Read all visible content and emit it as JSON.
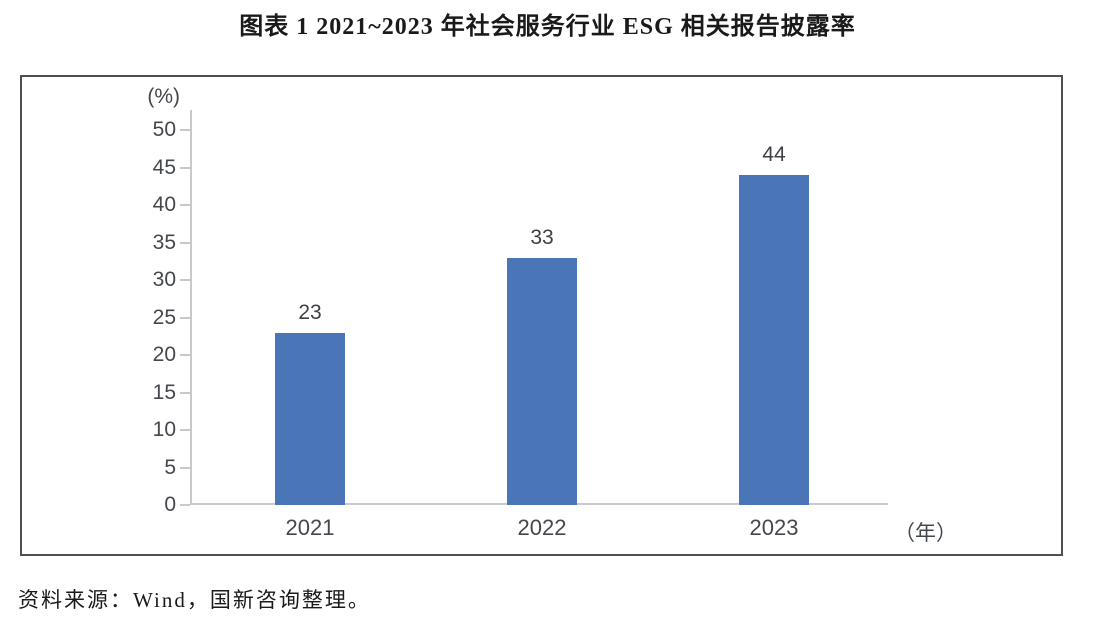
{
  "title": "图表 1 2021~2023 年社会服务行业 ESG 相关报告披露率",
  "source_note": "资料来源：Wind，国新咨询整理。",
  "chart_data": {
    "type": "bar",
    "title": "图表 1 2021~2023 年社会服务行业 ESG 相关报告披露率",
    "categories": [
      "2021",
      "2022",
      "2023"
    ],
    "values": [
      23,
      33,
      44
    ],
    "data_labels": [
      "23",
      "33",
      "44"
    ],
    "xlabel": "（年）",
    "ylabel": "(%)",
    "ylim": [
      0,
      50
    ],
    "yticks": [
      0,
      5,
      10,
      15,
      20,
      25,
      30,
      35,
      40,
      45,
      50
    ],
    "grid": false,
    "legend": "none",
    "bar_color": "#4a76b8"
  },
  "colors": {
    "bar": "#4a76b8",
    "axis_line": "#c9c9c9",
    "chart_border": "#4f4f52",
    "tick_label_text": "#45474e",
    "data_label_text": "#3f4045",
    "title_text": "#1a1a1a",
    "source_text": "#1a1a1a"
  }
}
